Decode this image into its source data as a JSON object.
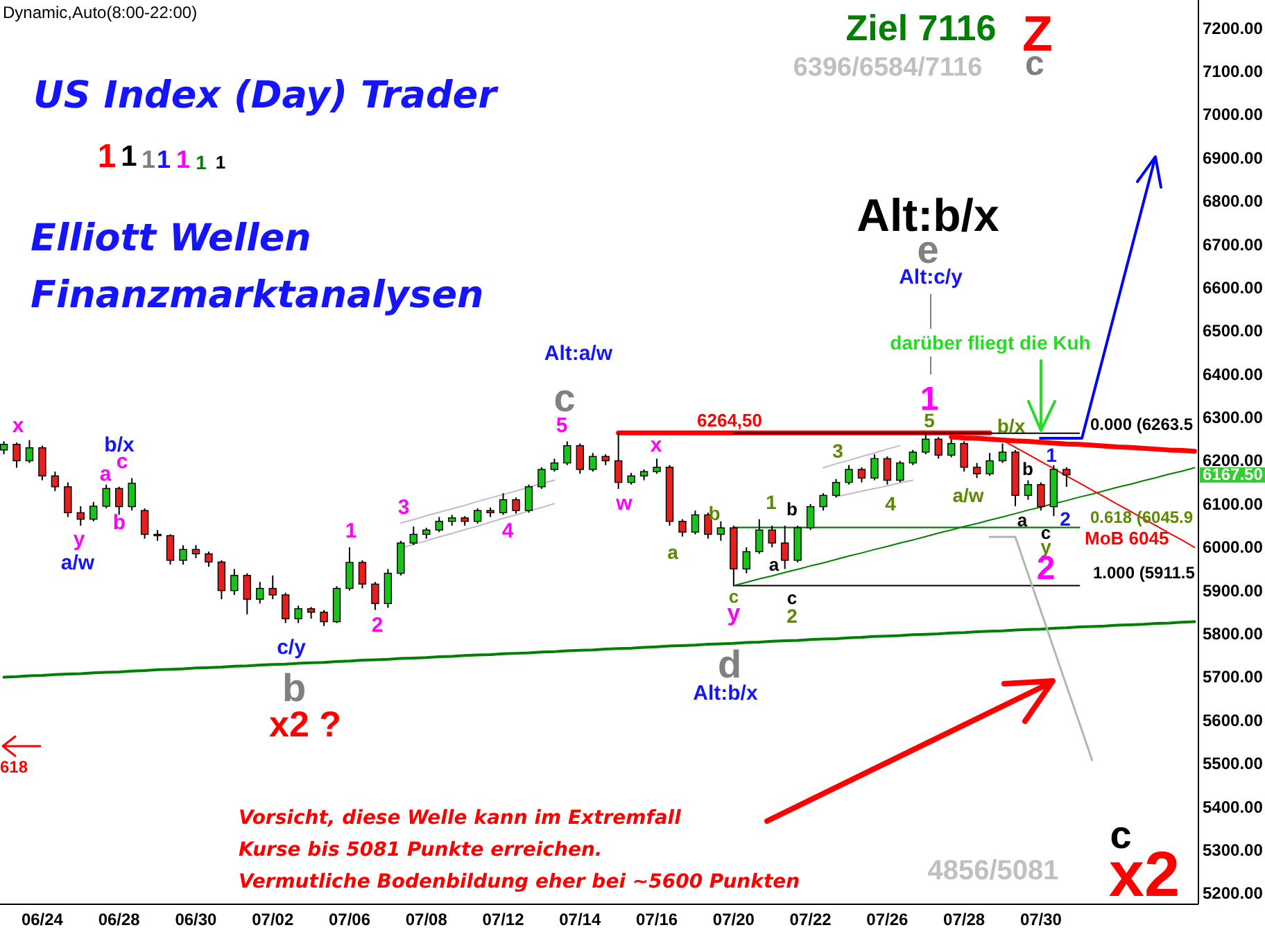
{
  "chart_data": {
    "type": "candlestick",
    "title": "Dynamic,Auto(8:00-22:00)",
    "categories": [
      null,
      null,
      null,
      "06/24",
      null,
      null,
      null,
      null,
      null,
      "06/28",
      null,
      null,
      null,
      null,
      null,
      "06/30",
      null,
      null,
      null,
      null,
      null,
      "07/02",
      null,
      null,
      null,
      null,
      null,
      "07/06",
      null,
      null,
      null,
      null,
      null,
      "07/08",
      null,
      null,
      null,
      null,
      null,
      "07/12",
      null,
      null,
      null,
      null,
      null,
      "07/14",
      null,
      null,
      null,
      null,
      null,
      "07/16",
      null,
      null,
      null,
      null,
      null,
      "07/20",
      null,
      null,
      null,
      null,
      null,
      "07/22",
      null,
      null,
      null,
      null,
      null,
      "07/26",
      null,
      null,
      null,
      null,
      null,
      "07/28",
      null,
      null,
      null,
      null,
      null,
      "07/30",
      null,
      null,
      null,
      null,
      null,
      null,
      null,
      null,
      null,
      null,
      null,
      null
    ],
    "ohlc": [
      [
        6225,
        6245,
        6215,
        6238
      ],
      [
        6238,
        6242,
        6184,
        6200
      ],
      [
        6200,
        6248,
        6195,
        6230
      ],
      [
        6230,
        6235,
        6155,
        6165
      ],
      [
        6165,
        6175,
        6130,
        6140
      ],
      [
        6140,
        6150,
        6070,
        6080
      ],
      [
        6080,
        6095,
        6050,
        6065
      ],
      [
        6065,
        6105,
        6060,
        6095
      ],
      [
        6095,
        6145,
        6090,
        6136
      ],
      [
        6136,
        6140,
        6075,
        6094
      ],
      [
        6094,
        6160,
        6085,
        6148
      ],
      [
        6085,
        6090,
        6020,
        6030
      ],
      [
        6030,
        6040,
        6015,
        6027
      ],
      [
        6027,
        6030,
        5960,
        5970
      ],
      [
        5970,
        6005,
        5960,
        5995
      ],
      [
        5995,
        6005,
        5975,
        5985
      ],
      [
        5985,
        5990,
        5955,
        5966
      ],
      [
        5966,
        5970,
        5880,
        5900
      ],
      [
        5900,
        5950,
        5890,
        5935
      ],
      [
        5935,
        5940,
        5845,
        5880
      ],
      [
        5880,
        5920,
        5870,
        5905
      ],
      [
        5905,
        5935,
        5880,
        5890
      ],
      [
        5890,
        5895,
        5825,
        5835
      ],
      [
        5835,
        5865,
        5825,
        5858
      ],
      [
        5858,
        5862,
        5835,
        5850
      ],
      [
        5850,
        5855,
        5818,
        5828
      ],
      [
        5828,
        5910,
        5825,
        5905
      ],
      [
        5905,
        6000,
        5900,
        5965
      ],
      [
        5965,
        5970,
        5905,
        5915
      ],
      [
        5915,
        5920,
        5855,
        5870
      ],
      [
        5870,
        5950,
        5860,
        5940
      ],
      [
        5940,
        6015,
        5935,
        6010
      ],
      [
        6010,
        6048,
        6005,
        6030
      ],
      [
        6030,
        6045,
        6020,
        6040
      ],
      [
        6040,
        6070,
        6035,
        6060
      ],
      [
        6060,
        6075,
        6050,
        6068
      ],
      [
        6068,
        6072,
        6050,
        6060
      ],
      [
        6060,
        6090,
        6055,
        6085
      ],
      [
        6085,
        6092,
        6070,
        6080
      ],
      [
        6080,
        6125,
        6075,
        6110
      ],
      [
        6110,
        6115,
        6078,
        6085
      ],
      [
        6085,
        6145,
        6080,
        6140
      ],
      [
        6140,
        6185,
        6135,
        6180
      ],
      [
        6180,
        6205,
        6175,
        6195
      ],
      [
        6195,
        6245,
        6190,
        6235
      ],
      [
        6235,
        6240,
        6170,
        6180
      ],
      [
        6180,
        6218,
        6175,
        6210
      ],
      [
        6210,
        6215,
        6190,
        6200
      ],
      [
        6200,
        6264.5,
        6135,
        6150
      ],
      [
        6150,
        6172,
        6145,
        6165
      ],
      [
        6165,
        6180,
        6155,
        6175
      ],
      [
        6175,
        6205,
        6170,
        6185
      ],
      [
        6185,
        6190,
        6050,
        6060
      ],
      [
        6060,
        6065,
        6025,
        6035
      ],
      [
        6035,
        6085,
        6030,
        6075
      ],
      [
        6075,
        6080,
        6020,
        6030
      ],
      [
        6030,
        6060,
        6015,
        6045
      ],
      [
        6045,
        6050,
        5911.5,
        5950
      ],
      [
        5950,
        6000,
        5940,
        5990
      ],
      [
        5990,
        6065,
        5985,
        6040
      ],
      [
        6040,
        6050,
        6000,
        6010
      ],
      [
        6010,
        6050,
        5950,
        5970
      ],
      [
        5970,
        6050,
        5965,
        6045
      ],
      [
        6045,
        6100,
        6040,
        6094
      ],
      [
        6094,
        6125,
        6085,
        6120
      ],
      [
        6120,
        6158,
        6115,
        6150
      ],
      [
        6150,
        6190,
        6145,
        6180
      ],
      [
        6180,
        6185,
        6150,
        6160
      ],
      [
        6160,
        6215,
        6155,
        6205
      ],
      [
        6205,
        6210,
        6145,
        6155
      ],
      [
        6155,
        6200,
        6150,
        6195
      ],
      [
        6195,
        6225,
        6190,
        6220
      ],
      [
        6220,
        6262,
        6215,
        6250
      ],
      [
        6250,
        6255,
        6205,
        6213
      ],
      [
        6213,
        6250,
        6208,
        6240
      ],
      [
        6240,
        6245,
        6175,
        6185
      ],
      [
        6185,
        6195,
        6160,
        6170
      ],
      [
        6170,
        6218,
        6165,
        6200
      ],
      [
        6200,
        6240,
        6195,
        6220
      ],
      [
        6220,
        6225,
        6095,
        6120
      ],
      [
        6120,
        6155,
        6110,
        6145
      ],
      [
        6145,
        6150,
        6085,
        6094
      ],
      [
        6094,
        6190,
        6072,
        6180
      ],
      [
        6180,
        6185,
        6140,
        6167.5
      ],
      null,
      null,
      null,
      null,
      null,
      null,
      null,
      null,
      null,
      null
    ],
    "series": [
      {
        "type": "line",
        "color": "#008000",
        "values": [
          5700,
          5701,
          5703,
          5704,
          5706,
          5707,
          5708,
          5710,
          5711,
          5712,
          5714,
          5715,
          5717,
          5718,
          5719,
          5721,
          5722,
          5723,
          5725,
          5726,
          5728,
          5729,
          5730,
          5732,
          5733,
          5734,
          5736,
          5737,
          5739,
          5740,
          5741,
          5743,
          5744,
          5745,
          5747,
          5748,
          5750,
          5751,
          5752,
          5754,
          5755,
          5756,
          5758,
          5759,
          5761,
          5762,
          5763,
          5765,
          5766,
          5767,
          5769,
          5770,
          5772,
          5773,
          5774,
          5776,
          5777,
          5778,
          5780,
          5781,
          5783,
          5784,
          5785,
          5787,
          5788,
          5789,
          5791,
          5792,
          5794,
          5795,
          5796,
          5798,
          5799,
          5800,
          5802,
          5803,
          5805,
          5806,
          5807,
          5809,
          5810,
          5811,
          5813,
          5814,
          5816,
          5817,
          5818,
          5820,
          5821,
          5822,
          5824,
          5825,
          5827,
          5828
        ]
      },
      {
        "type": "line",
        "color": "#ff0000",
        "values": [
          null,
          null,
          null,
          null,
          null,
          null,
          null,
          null,
          null,
          null,
          null,
          null,
          null,
          null,
          null,
          null,
          null,
          null,
          null,
          null,
          null,
          null,
          null,
          null,
          null,
          null,
          null,
          null,
          null,
          null,
          null,
          null,
          null,
          null,
          null,
          null,
          null,
          null,
          null,
          null,
          null,
          null,
          null,
          null,
          null,
          null,
          null,
          null,
          6264.5,
          6264.5,
          6264.5,
          6264.5,
          6264.5,
          6264.5,
          6264.5,
          6264.5,
          6264.5,
          6264.5,
          6264.5,
          6264.5,
          6264.5,
          6264.5,
          6264.5,
          6264.5,
          6264.5,
          6264.5,
          6264.5,
          6264.5,
          6264.5,
          6264.5,
          6264.5,
          6264.5,
          6264.5,
          6264.5,
          6264.5,
          6264.5,
          6264.5,
          6264.5,
          null,
          null,
          null,
          null,
          null,
          null,
          null,
          null,
          null,
          null,
          null,
          null,
          null,
          null,
          null,
          null
        ]
      },
      {
        "type": "line",
        "color": "#ff0000",
        "values": [
          null,
          null,
          null,
          null,
          null,
          null,
          null,
          null,
          null,
          null,
          null,
          null,
          null,
          null,
          null,
          null,
          null,
          null,
          null,
          null,
          null,
          null,
          null,
          null,
          null,
          null,
          null,
          null,
          null,
          null,
          null,
          null,
          null,
          null,
          null,
          null,
          null,
          null,
          null,
          null,
          null,
          null,
          null,
          null,
          null,
          null,
          null,
          null,
          null,
          null,
          null,
          null,
          null,
          null,
          null,
          null,
          null,
          null,
          null,
          null,
          null,
          null,
          null,
          null,
          null,
          null,
          null,
          null,
          null,
          null,
          null,
          null,
          null,
          null,
          6255,
          6253,
          6252,
          6250,
          6248,
          6246,
          6245,
          6243,
          6241,
          6239,
          6238,
          6236,
          6234,
          6232,
          6231,
          6229,
          6227,
          6225,
          6224,
          6222
        ]
      },
      {
        "type": "line",
        "color": "#000000",
        "values": [
          null,
          null,
          null,
          null,
          null,
          null,
          null,
          null,
          null,
          null,
          null,
          null,
          null,
          null,
          null,
          null,
          null,
          null,
          null,
          null,
          null,
          null,
          null,
          null,
          null,
          null,
          null,
          null,
          null,
          null,
          null,
          null,
          null,
          null,
          null,
          null,
          null,
          null,
          null,
          null,
          null,
          null,
          null,
          null,
          null,
          null,
          null,
          null,
          null,
          null,
          null,
          null,
          null,
          null,
          null,
          null,
          null,
          6263.5,
          6263.5,
          6263.5,
          6263.5,
          6263.5,
          6263.5,
          6263.5,
          6263.5,
          6263.5,
          6263.5,
          6263.5,
          6263.5,
          6263.5,
          6263.5,
          6263.5,
          6263.5,
          6263.5,
          6263.5,
          6263.5,
          6263.5,
          6263.5,
          6263.5,
          6263.5,
          6263.5,
          6263.5,
          6263.5,
          6263.5,
          6263.5,
          null,
          null,
          null,
          null,
          null,
          null,
          null,
          null,
          null
        ]
      },
      {
        "type": "line",
        "color": "#008000",
        "values": [
          null,
          null,
          null,
          null,
          null,
          null,
          null,
          null,
          null,
          null,
          null,
          null,
          null,
          null,
          null,
          null,
          null,
          null,
          null,
          null,
          null,
          null,
          null,
          null,
          null,
          null,
          null,
          null,
          null,
          null,
          null,
          null,
          null,
          null,
          null,
          null,
          null,
          null,
          null,
          null,
          null,
          null,
          null,
          null,
          null,
          null,
          null,
          null,
          null,
          null,
          null,
          null,
          null,
          null,
          null,
          null,
          null,
          6045.9,
          6045.9,
          6045.9,
          6045.9,
          6045.9,
          6045.9,
          6045.9,
          6045.9,
          6045.9,
          6045.9,
          6045.9,
          6045.9,
          6045.9,
          6045.9,
          6045.9,
          6045.9,
          6045.9,
          6045.9,
          6045.9,
          6045.9,
          6045.9,
          6045.9,
          6045.9,
          6045.9,
          6045.9,
          6045.9,
          6045.9,
          6045.9,
          null,
          null,
          null,
          null,
          null,
          null,
          null,
          null,
          null
        ]
      },
      {
        "type": "line",
        "color": "#000000",
        "values": [
          null,
          null,
          null,
          null,
          null,
          null,
          null,
          null,
          null,
          null,
          null,
          null,
          null,
          null,
          null,
          null,
          null,
          null,
          null,
          null,
          null,
          null,
          null,
          null,
          null,
          null,
          null,
          null,
          null,
          null,
          null,
          null,
          null,
          null,
          null,
          null,
          null,
          null,
          null,
          null,
          null,
          null,
          null,
          null,
          null,
          null,
          null,
          null,
          null,
          null,
          null,
          null,
          null,
          null,
          null,
          null,
          null,
          5911.5,
          5911.5,
          5911.5,
          5911.5,
          5911.5,
          5911.5,
          5911.5,
          5911.5,
          5911.5,
          5911.5,
          5911.5,
          5911.5,
          5911.5,
          5911.5,
          5911.5,
          5911.5,
          5911.5,
          5911.5,
          5911.5,
          5911.5,
          5911.5,
          5911.5,
          5911.5,
          5911.5,
          5911.5,
          5911.5,
          5911.5,
          5911.5,
          null,
          null,
          null,
          null,
          null,
          null,
          null,
          null,
          null
        ]
      },
      {
        "type": "line",
        "color": "#008000",
        "values": [
          null,
          null,
          null,
          null,
          null,
          null,
          null,
          null,
          null,
          null,
          null,
          null,
          null,
          null,
          null,
          null,
          null,
          null,
          null,
          null,
          null,
          null,
          null,
          null,
          null,
          null,
          null,
          null,
          null,
          null,
          null,
          null,
          null,
          null,
          null,
          null,
          null,
          null,
          null,
          null,
          null,
          null,
          null,
          null,
          null,
          null,
          null,
          null,
          null,
          null,
          null,
          null,
          null,
          null,
          null,
          null,
          null,
          5911.5,
          5919,
          5927,
          5934,
          5942,
          5949,
          5957,
          5964,
          5972,
          5980,
          5987,
          5995,
          6002,
          6010,
          6017,
          6025,
          6033,
          6040,
          6048,
          6055,
          6063,
          6070,
          6078,
          6086,
          6093,
          6101,
          6108,
          6116,
          6123,
          6131,
          6139,
          6146,
          6154,
          6161,
          6169,
          6176,
          6184
        ]
      },
      {
        "type": "line",
        "color": "#ff0000",
        "values": [
          null,
          null,
          null,
          null,
          null,
          null,
          null,
          null,
          null,
          null,
          null,
          null,
          null,
          null,
          null,
          null,
          null,
          null,
          null,
          null,
          null,
          null,
          null,
          null,
          null,
          null,
          null,
          null,
          null,
          null,
          null,
          null,
          null,
          null,
          null,
          null,
          null,
          null,
          null,
          null,
          null,
          null,
          null,
          null,
          null,
          null,
          null,
          null,
          null,
          null,
          null,
          null,
          null,
          null,
          null,
          null,
          null,
          null,
          null,
          null,
          null,
          null,
          null,
          null,
          null,
          null,
          null,
          null,
          null,
          null,
          null,
          null,
          null,
          null,
          null,
          null,
          null,
          null,
          6248,
          6231,
          6215,
          6198,
          6182,
          6165,
          6149,
          6132,
          6116,
          6099,
          6083,
          6066,
          6050,
          6033,
          6017,
          6000
        ]
      },
      {
        "type": "line",
        "color": "#b4b4b4",
        "values": [
          null,
          null,
          null,
          null,
          null,
          null,
          null,
          null,
          null,
          null,
          null,
          null,
          null,
          null,
          null,
          null,
          null,
          null,
          null,
          null,
          null,
          null,
          null,
          null,
          null,
          null,
          null,
          null,
          null,
          null,
          null,
          null,
          null,
          null,
          null,
          null,
          null,
          null,
          null,
          null,
          null,
          null,
          null,
          null,
          null,
          null,
          null,
          null,
          null,
          null,
          null,
          null,
          null,
          null,
          null,
          null,
          null,
          null,
          null,
          null,
          null,
          null,
          null,
          null,
          null,
          null,
          null,
          null,
          null,
          null,
          null,
          null,
          null,
          null,
          null,
          null,
          null,
          6024,
          6024,
          6024,
          5938,
          5852,
          5766,
          5680,
          5594,
          5508,
          null,
          null,
          null,
          null,
          null,
          null,
          null,
          null
        ]
      },
      {
        "type": "line",
        "color": "#c4b8cc",
        "values": [
          null,
          null,
          null,
          null,
          null,
          null,
          null,
          null,
          null,
          null,
          null,
          null,
          null,
          null,
          null,
          null,
          null,
          null,
          null,
          null,
          null,
          null,
          null,
          null,
          null,
          null,
          null,
          null,
          null,
          null,
          null,
          6056,
          6064,
          6073,
          6081,
          6089,
          6097,
          6106,
          6114,
          6122,
          6130,
          6139,
          6147,
          6155,
          null,
          null,
          null,
          null,
          null,
          null,
          null,
          null,
          null,
          null,
          null,
          null,
          null,
          null,
          null,
          null,
          null,
          null,
          null,
          null,
          null,
          null,
          null,
          null,
          null,
          null,
          null,
          null,
          null,
          null,
          null,
          null,
          null,
          null,
          null,
          null,
          null,
          null,
          null,
          null,
          null,
          null,
          null,
          null,
          null,
          null,
          null,
          null,
          null,
          null
        ]
      },
      {
        "type": "line",
        "color": "#c4b8cc",
        "values": [
          null,
          null,
          null,
          null,
          null,
          null,
          null,
          null,
          null,
          null,
          null,
          null,
          null,
          null,
          null,
          null,
          null,
          null,
          null,
          null,
          null,
          null,
          null,
          null,
          null,
          null,
          null,
          null,
          null,
          null,
          null,
          5998,
          6007,
          6015,
          6024,
          6032,
          6041,
          6049,
          6058,
          6067,
          6075,
          6084,
          6092,
          6101,
          null,
          null,
          null,
          null,
          null,
          null,
          null,
          null,
          null,
          null,
          null,
          null,
          null,
          null,
          null,
          null,
          null,
          null,
          null,
          null,
          null,
          null,
          null,
          null,
          null,
          null,
          null,
          null,
          null,
          null,
          null,
          null,
          null,
          null,
          null,
          null,
          null,
          null,
          null,
          null,
          null,
          null,
          null,
          null,
          null,
          null,
          null,
          null,
          null,
          null
        ]
      },
      {
        "type": "line",
        "color": "#c4b8cc",
        "values": [
          null,
          null,
          null,
          null,
          null,
          null,
          null,
          null,
          null,
          null,
          null,
          null,
          null,
          null,
          null,
          null,
          null,
          null,
          null,
          null,
          null,
          null,
          null,
          null,
          null,
          null,
          null,
          null,
          null,
          null,
          null,
          null,
          null,
          null,
          null,
          null,
          null,
          null,
          null,
          null,
          null,
          null,
          null,
          null,
          null,
          null,
          null,
          null,
          null,
          null,
          null,
          null,
          null,
          null,
          null,
          null,
          null,
          null,
          null,
          null,
          null,
          null,
          null,
          null,
          6184,
          6193,
          6201,
          6210,
          6218,
          6227,
          6235,
          null,
          null,
          null,
          null,
          null,
          null,
          null,
          null,
          null,
          null,
          null,
          null,
          null,
          null,
          null,
          null,
          null,
          null,
          null,
          null,
          null,
          null,
          null
        ]
      },
      {
        "type": "line",
        "color": "#c4b8cc",
        "values": [
          null,
          null,
          null,
          null,
          null,
          null,
          null,
          null,
          null,
          null,
          null,
          null,
          null,
          null,
          null,
          null,
          null,
          null,
          null,
          null,
          null,
          null,
          null,
          null,
          null,
          null,
          null,
          null,
          null,
          null,
          null,
          null,
          null,
          null,
          null,
          null,
          null,
          null,
          null,
          null,
          null,
          null,
          null,
          null,
          null,
          null,
          null,
          null,
          null,
          null,
          null,
          null,
          null,
          null,
          null,
          null,
          null,
          null,
          null,
          null,
          null,
          null,
          null,
          null,
          null,
          6117,
          6123,
          6130,
          6136,
          6142,
          6149,
          6155,
          null,
          null,
          null,
          null,
          null,
          null,
          null,
          null,
          null,
          null,
          null,
          null,
          null,
          null,
          null,
          null,
          null,
          null,
          null,
          null,
          null,
          null
        ]
      }
    ],
    "ylim": [
      5175,
      7265
    ],
    "yticks": [
      {
        "value": 5200,
        "label": "5200.00"
      },
      {
        "value": 5300,
        "label": "5300.00"
      },
      {
        "value": 5400,
        "label": "5400.00"
      },
      {
        "value": 5500,
        "label": "5500.00"
      },
      {
        "value": 5600,
        "label": "5600.00"
      },
      {
        "value": 5700,
        "label": "5700.00"
      },
      {
        "value": 5800,
        "label": "5800.00"
      },
      {
        "value": 5900,
        "label": "5900.00"
      },
      {
        "value": 6000,
        "label": "6000.00"
      },
      {
        "value": 6100,
        "label": "6100.00"
      },
      {
        "value": 6200,
        "label": "6200.00"
      },
      {
        "value": 6300,
        "label": "6300.00"
      },
      {
        "value": 6400,
        "label": "6400.00"
      },
      {
        "value": 6500,
        "label": "6500.00"
      },
      {
        "value": 6600,
        "label": "6600.00"
      },
      {
        "value": 6700,
        "label": "6700.00"
      },
      {
        "value": 6800,
        "label": "6800.00"
      },
      {
        "value": 6900,
        "label": "6900.00"
      },
      {
        "value": 7000,
        "label": "7000.00"
      },
      {
        "value": 7100,
        "label": "7100.00"
      },
      {
        "value": 7200,
        "label": "7200.00"
      }
    ],
    "annotations": [
      "US Index (Day) Trader",
      "1",
      "1",
      "1",
      "1",
      "1",
      "1",
      "1",
      "Elliott Wellen",
      "Finanzmarktanalysen",
      "Ziel 7116",
      "Z",
      "6396/6584/7116",
      "c",
      "618",
      "Vorsicht, diese Welle kann im Extremfall",
      "Kurse bis 5081 Punkte erreichen.",
      "Vermutliche Bodenbildung eher bei ~5600 Punkten",
      "4856/5081",
      "c",
      "x2",
      "x",
      "b/x",
      "c",
      "a",
      "b",
      "y",
      "a/w",
      "1",
      "2",
      "3",
      "4",
      "c/y",
      "b",
      "5",
      "c",
      "Alt:a/w",
      "x2 ?",
      "w",
      "x",
      "a",
      "b",
      "c",
      "y",
      "d",
      "Alt:b/x",
      "1",
      "b",
      "a",
      "c",
      "2",
      "3",
      "4",
      "5",
      "1",
      "a/w",
      "b/x",
      "b",
      "a",
      "1",
      "2",
      "c",
      "y",
      "2",
      "Alt:b/x",
      "e",
      "Alt:c/y",
      {
        "text": "darüber fliegt die Kuh",
        "x": "07/30",
        "y": 6270
      },
      "6264,50",
      "0.000 (6263.5",
      "0.618 (6045.9",
      "MoB 6045",
      "1.000 (5911.5",
      "6167.50"
    ]
  }
}
